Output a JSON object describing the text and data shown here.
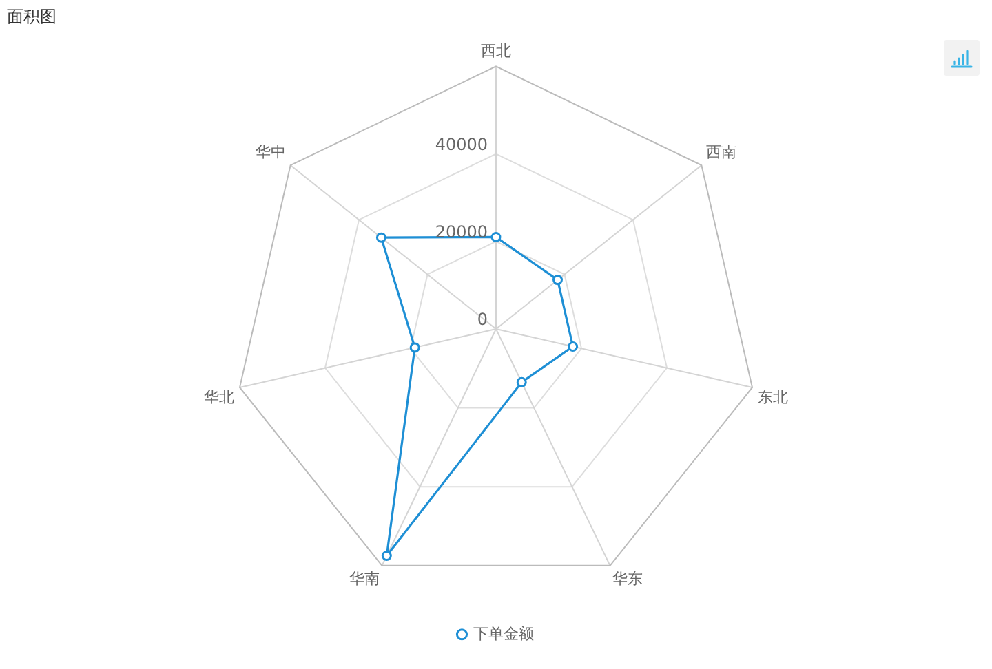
{
  "chart_data": {
    "type": "radar",
    "title": "面积图",
    "categories": [
      "西北",
      "西南",
      "东北",
      "华东",
      "华南",
      "华北",
      "华中"
    ],
    "series": [
      {
        "name": "下单金额",
        "color": "#1e8fd5",
        "values": [
          21000,
          18000,
          18000,
          13500,
          57500,
          19000,
          33500
        ]
      }
    ],
    "ylim": [
      0,
      60000
    ],
    "yticks": [
      0,
      20000,
      40000
    ],
    "grid": true,
    "legend": "bottom",
    "marker": "circle"
  }
}
